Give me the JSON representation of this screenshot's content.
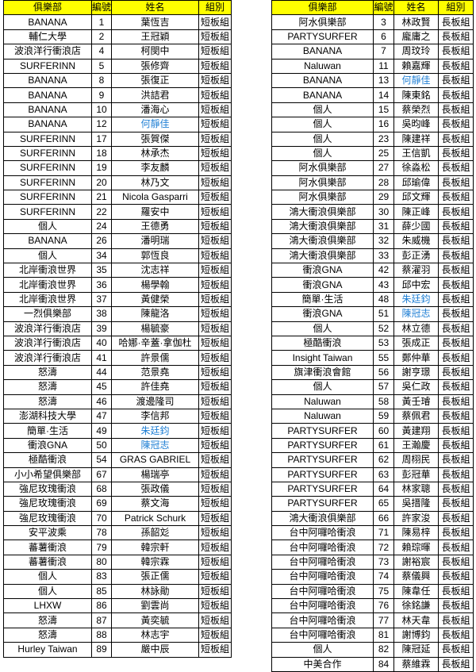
{
  "tables": [
    {
      "header": [
        "俱樂部",
        "編號",
        "姓名",
        "組別"
      ],
      "rows": [
        [
          "BANANA",
          1,
          "葉恆吉",
          "短板組"
        ],
        [
          "輔仁大學",
          2,
          "王冠穎",
          "短板組"
        ],
        [
          "波浪洋行衝浪店",
          4,
          "柯閔中",
          "短板組"
        ],
        [
          "SURFERINN",
          5,
          "張修齊",
          "短板組"
        ],
        [
          "BANANA",
          8,
          "張復正",
          "短板組"
        ],
        [
          "BANANA",
          9,
          "洪詰君",
          "短板組"
        ],
        [
          "BANANA",
          10,
          "潘海心",
          "短板組"
        ],
        [
          "BANANA",
          12,
          {
            "text": "何靜佳",
            "color": "#1f7fd4"
          },
          "短板組"
        ],
        [
          "SURFERINN",
          17,
          "張賀傑",
          "短板組"
        ],
        [
          "SURFERINN",
          18,
          "林承杰",
          "短板組"
        ],
        [
          "SURFERINN",
          19,
          "李友麟",
          "短板組"
        ],
        [
          "SURFERINN",
          20,
          "林乃文",
          "短板組"
        ],
        [
          "SURFERINN",
          21,
          "Nicola Gasparri",
          "短板組"
        ],
        [
          "SURFERINN",
          22,
          "羅安中",
          "短板組"
        ],
        [
          "個人",
          24,
          "王德勇",
          "短板組"
        ],
        [
          "BANANA",
          26,
          "潘明瑞",
          "短板組"
        ],
        [
          "個人",
          34,
          "郭恆良",
          "短板組"
        ],
        [
          "北岸衝浪世界",
          35,
          "沈志祥",
          "短板組"
        ],
        [
          "北岸衝浪世界",
          36,
          "楊學翰",
          "短板組"
        ],
        [
          "北岸衝浪世界",
          37,
          "黃健榮",
          "短板組"
        ],
        [
          "一烈俱樂部",
          38,
          "陳龍洛",
          "短板組"
        ],
        [
          "波浪洋行衝浪店",
          39,
          "楊毓豪",
          "短板組"
        ],
        [
          "波浪洋行衝浪店",
          40,
          "哈娜·辛蓋·拿伽杜",
          "短板組"
        ],
        [
          "波浪洋行衝浪店",
          41,
          "許景儒",
          "短板組"
        ],
        [
          "怒濤",
          44,
          "范景堯",
          "短板組"
        ],
        [
          "怒濤",
          45,
          "許佳堯",
          "短板組"
        ],
        [
          "怒濤",
          46,
          "渡邊隆司",
          "短板組"
        ],
        [
          "澎湖科技大學",
          47,
          "李信邦",
          "短板組"
        ],
        [
          "簡單·生活",
          49,
          {
            "text": "朱廷鈞",
            "color": "#1f7fd4"
          },
          "短板組"
        ],
        [
          "衝浪GNA",
          50,
          {
            "text": "陳冠志",
            "color": "#1f7fd4"
          },
          "短板組"
        ],
        [
          "極酷衝浪",
          54,
          "GRAS GABRIEL",
          "短板組"
        ],
        [
          "小小希望俱樂部",
          67,
          "楊瑞亭",
          "短板組"
        ],
        [
          "強尼玫瑰衝浪",
          68,
          "張政儀",
          "短板組"
        ],
        [
          "強尼玫瑰衝浪",
          69,
          "蔡文海",
          "短板組"
        ],
        [
          "強尼玫瑰衝浪",
          70,
          "Patrick Schurk",
          "短板組"
        ],
        [
          "安平波乘",
          78,
          "孫韶彣",
          "短板組"
        ],
        [
          "蕃薯衝浪",
          79,
          "韓宗軒",
          "短板組"
        ],
        [
          "蕃薯衝浪",
          80,
          "韓宗霖",
          "短板組"
        ],
        [
          "個人",
          83,
          "張正儒",
          "短板組"
        ],
        [
          "個人",
          85,
          "林詠勛",
          "短板組"
        ],
        [
          "LHXW",
          86,
          "劉雲尚",
          "短板組"
        ],
        [
          "怒濤",
          87,
          "黃奕毓",
          "短板組"
        ],
        [
          "怒濤",
          88,
          "林志宇",
          "短板組"
        ],
        [
          "Hurley Taiwan",
          89,
          "嚴中辰",
          "短板組"
        ]
      ]
    },
    {
      "header": [
        "俱樂部",
        "編號",
        "姓名",
        "組別"
      ],
      "rows": [
        [
          "阿水俱樂部",
          3,
          "林政賢",
          "長板組"
        ],
        [
          "PARTYSURFER",
          6,
          "龐庸之",
          "長板組"
        ],
        [
          "BANANA",
          7,
          "周玟玲",
          "長板組"
        ],
        [
          "Naluwan",
          11,
          "賴嘉輝",
          "長板組"
        ],
        [
          "BANANA",
          13,
          {
            "text": "何靜佳",
            "color": "#1f7fd4"
          },
          "長板組"
        ],
        [
          "BANANA",
          14,
          "陳東銘",
          "長板組"
        ],
        [
          "個人",
          15,
          "蔡榮烈",
          "長板組"
        ],
        [
          "個人",
          16,
          "吳昀峰",
          "長板組"
        ],
        [
          "個人",
          23,
          "陳建祥",
          "長板組"
        ],
        [
          "個人",
          25,
          "王信凱",
          "長板組"
        ],
        [
          "阿水俱樂部",
          27,
          "徐淼松",
          "長板組"
        ],
        [
          "阿水俱樂部",
          28,
          "邱瑜偉",
          "長板組"
        ],
        [
          "阿水俱樂部",
          29,
          "邱文輝",
          "長板組"
        ],
        [
          "鴻大衝浪俱樂部",
          30,
          "陳正峰",
          "長板組"
        ],
        [
          "鴻大衝浪俱樂部",
          31,
          "薛少國",
          "長板組"
        ],
        [
          "鴻大衝浪俱樂部",
          32,
          "朱威機",
          "長板組"
        ],
        [
          "鴻大衝浪俱樂部",
          33,
          "彭正湧",
          "長板組"
        ],
        [
          "衝浪GNA",
          42,
          "蔡濯羽",
          "長板組"
        ],
        [
          "衝浪GNA",
          43,
          "邱中宏",
          "長板組"
        ],
        [
          "簡單·生活",
          48,
          {
            "text": "朱廷鈞",
            "color": "#1f7fd4"
          },
          "長板組"
        ],
        [
          "衝浪GNA",
          51,
          {
            "text": "陳冠志",
            "color": "#1f7fd4"
          },
          "長板組"
        ],
        [
          "個人",
          52,
          "林立德",
          "長板組"
        ],
        [
          "極酷衝浪",
          53,
          "張成正",
          "長板組"
        ],
        [
          "Insight Taiwan",
          55,
          "鄭仲華",
          "長板組"
        ],
        [
          "旗津衝浪會館",
          56,
          "謝亨璟",
          "長板組"
        ],
        [
          "個人",
          57,
          "吳仁政",
          "長板組"
        ],
        [
          "Naluwan",
          58,
          "黃壬璿",
          "長板組"
        ],
        [
          "Naluwan",
          59,
          "蔡佩君",
          "長板組"
        ],
        [
          "PARTYSURFER",
          60,
          "黃建翔",
          "長板組"
        ],
        [
          "PARTYSURFER",
          61,
          "王瀚慶",
          "長板組"
        ],
        [
          "PARTYSURFER",
          62,
          "周栩民",
          "長板組"
        ],
        [
          "PARTYSURFER",
          63,
          "彭冠華",
          "長板組"
        ],
        [
          "PARTYSURFER",
          64,
          "林家聰",
          "長板組"
        ],
        [
          "PARTYSURFER",
          65,
          "吳搢隆",
          "長板組"
        ],
        [
          "鴻大衝浪俱樂部",
          66,
          "許家浚",
          "長板組"
        ],
        [
          "台中阿囉哈衝浪",
          71,
          "陳易梓",
          "長板組"
        ],
        [
          "台中阿囉哈衝浪",
          72,
          "賴琮暉",
          "長板組"
        ],
        [
          "台中阿囉哈衝浪",
          73,
          "謝裕宸",
          "長板組"
        ],
        [
          "台中阿囉哈衝浪",
          74,
          "蔡儀興",
          "長板組"
        ],
        [
          "台中阿囉哈衝浪",
          75,
          "陳韋任",
          "長板組"
        ],
        [
          "台中阿囉哈衝浪",
          76,
          "徐銘謙",
          "長板組"
        ],
        [
          "台中阿囉哈衝浪",
          77,
          "林天韋",
          "長板組"
        ],
        [
          "台中阿囉哈衝浪",
          81,
          "謝博鈞",
          "長板組"
        ],
        [
          "個人",
          82,
          "陳冠延",
          "長板組"
        ],
        [
          "中美合作",
          84,
          "蔡維霖",
          "長板組"
        ]
      ]
    }
  ]
}
